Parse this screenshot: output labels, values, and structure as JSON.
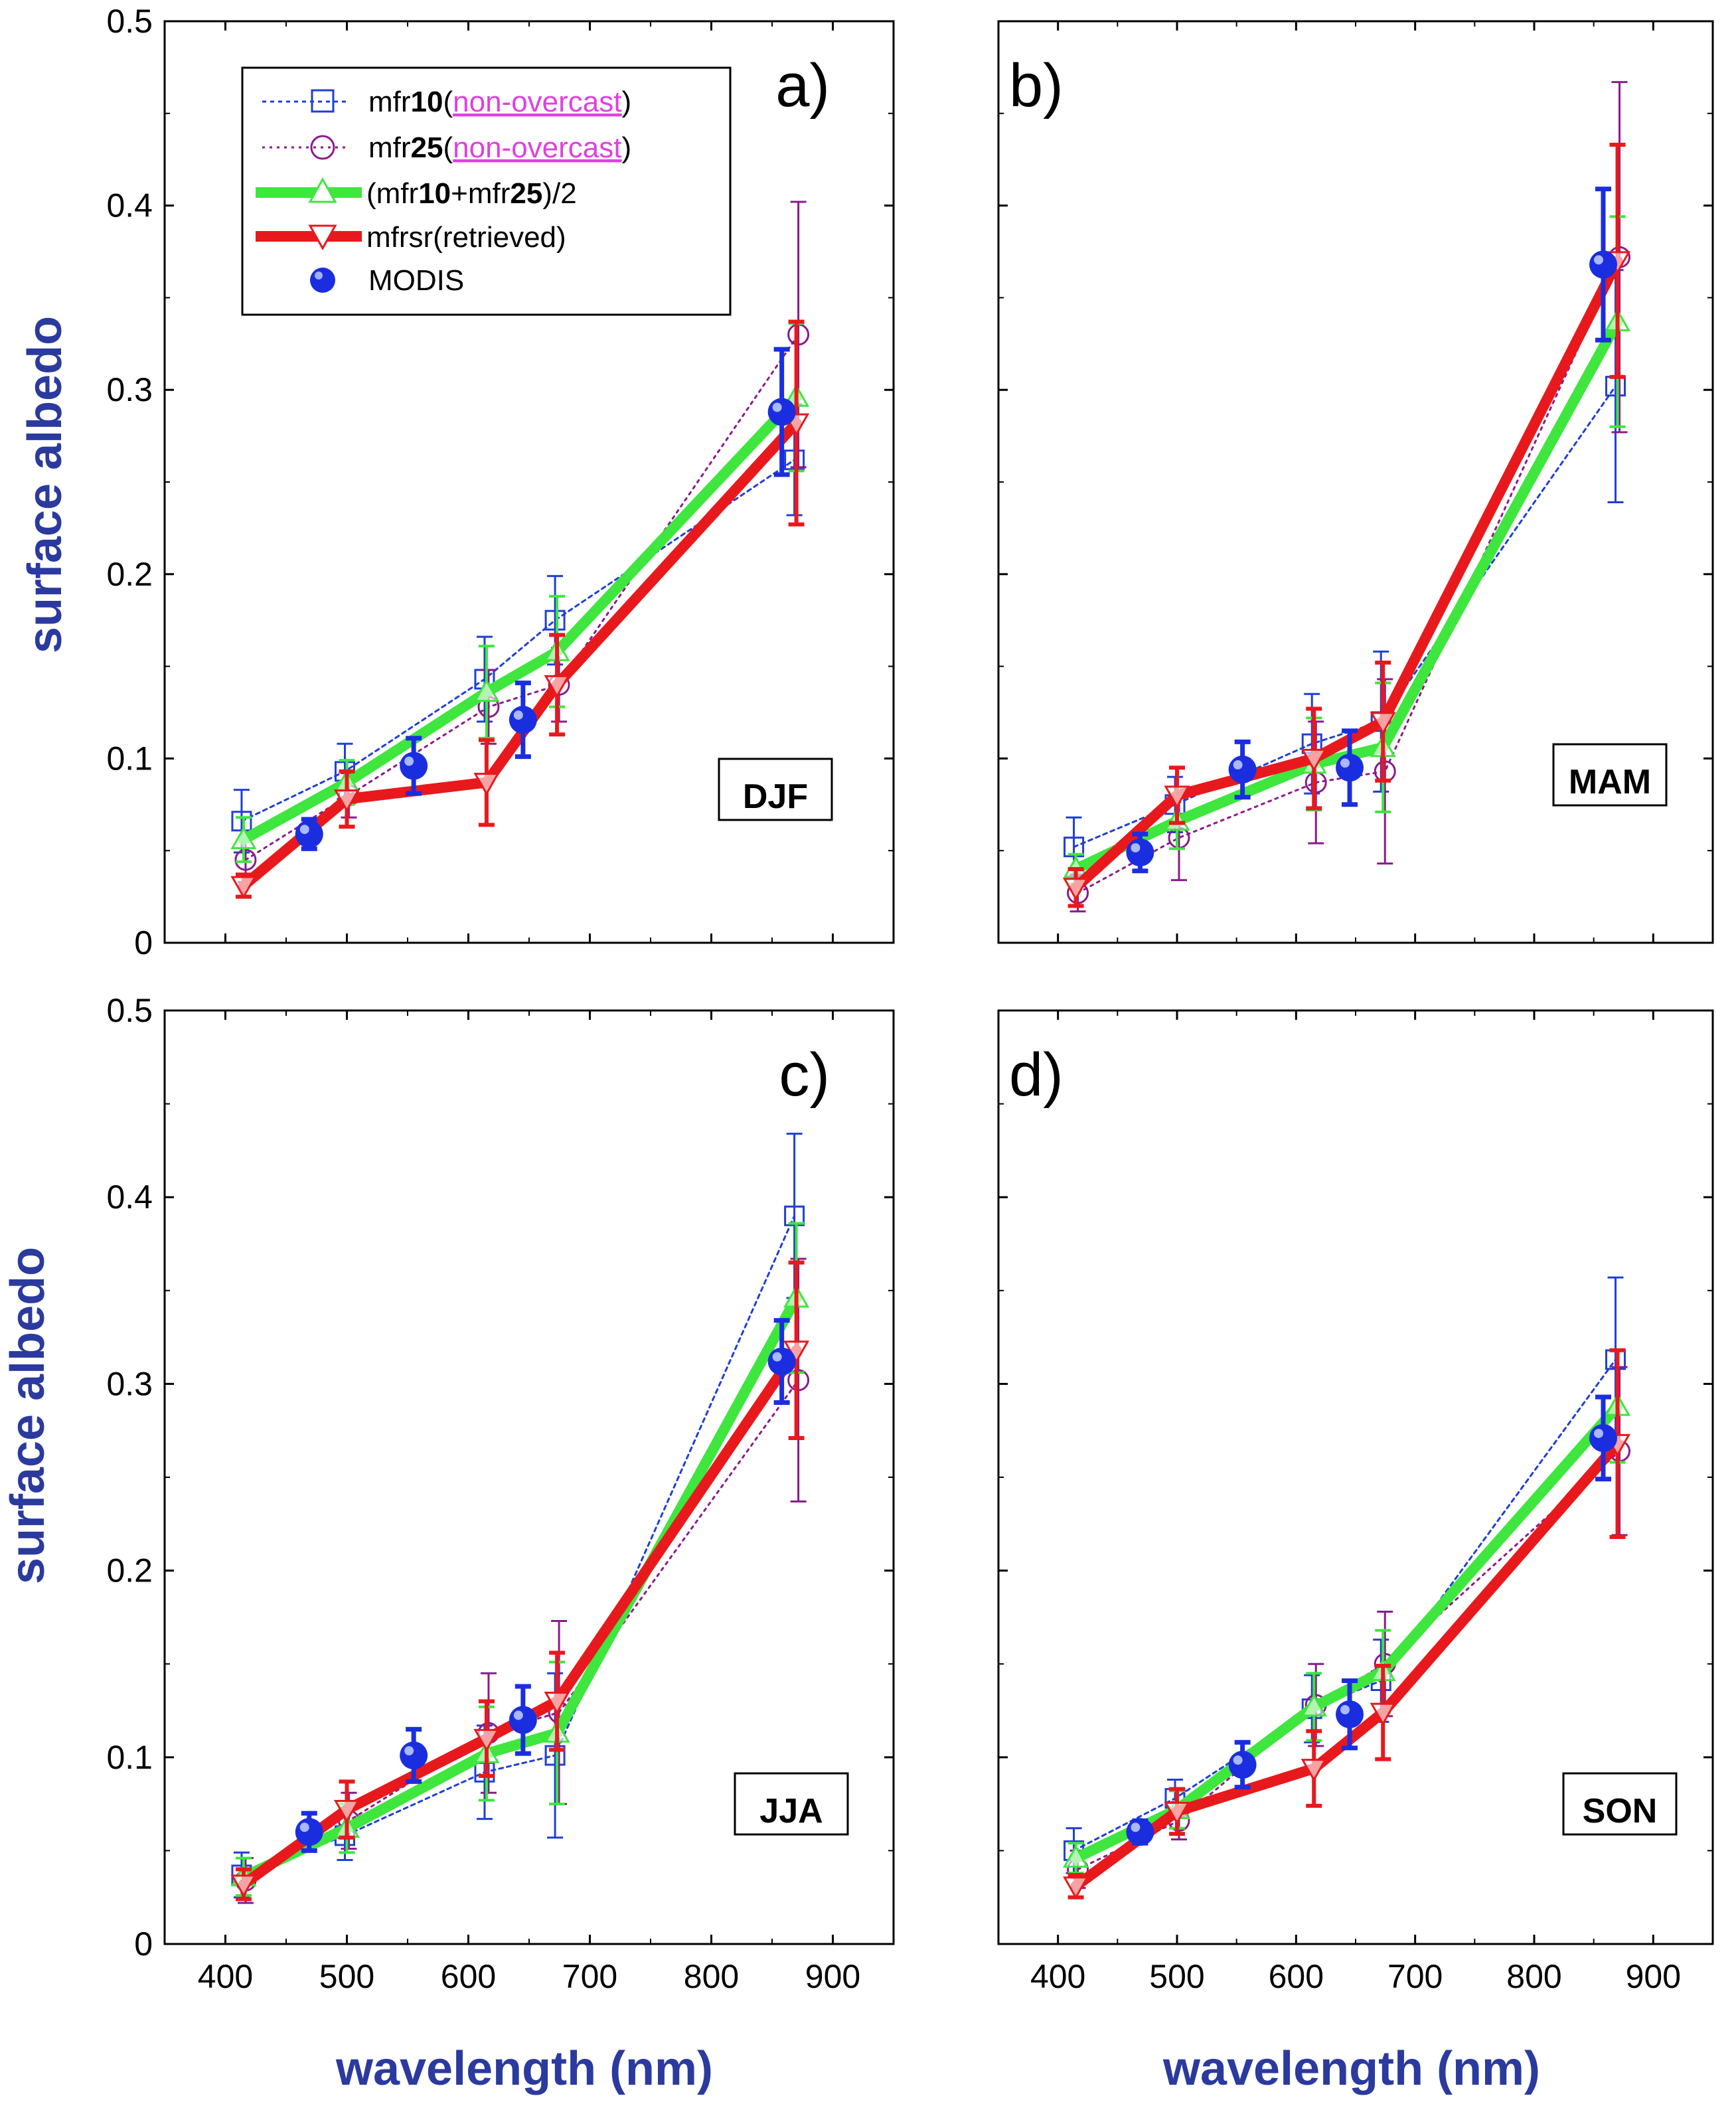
{
  "figure": {
    "ylabel": "surface albedo",
    "xlabel": "wavelength (nm)"
  },
  "legend": {
    "items": [
      {
        "key": "mfr10",
        "parts": [
          "mfr",
          "10",
          "(",
          "non-overcast",
          ")"
        ]
      },
      {
        "key": "mfr25",
        "parts": [
          "mfr",
          "25",
          "(",
          "non-overcast",
          ")"
        ]
      },
      {
        "key": "avg",
        "parts": [
          "(mfr",
          "10",
          "+mfr",
          "25",
          ")/2"
        ]
      },
      {
        "key": "mfrsr",
        "parts": [
          "mfrsr(retrieved)"
        ]
      },
      {
        "key": "modis",
        "parts": [
          "MODIS"
        ]
      }
    ]
  },
  "colors": {
    "mfr10": "#1f3fd6",
    "mfr25": "#8b1a8b",
    "avg": "#3ee63e",
    "mfrsr": "#e8191c",
    "modis": "#1a2ee0",
    "axis_label": "#2b3a9e"
  },
  "chart_data": [
    {
      "type": "line",
      "panel_label": "a)",
      "season": "DJF",
      "xlim": [
        350,
        950
      ],
      "ylim": [
        0,
        0.5
      ],
      "xticks": [
        "400",
        "500",
        "600",
        "700",
        "800",
        "900"
      ],
      "yticks": [
        "0",
        "0.1",
        "0.2",
        "0.3",
        "0.4",
        "0.5"
      ],
      "series": [
        {
          "name": "mfr10(non-overcast)",
          "key": "mfr10",
          "x": [
            415,
            500,
            615,
            673,
            870
          ],
          "y": [
            0.066,
            0.093,
            0.143,
            0.175,
            0.262
          ],
          "err": [
            0.017,
            0.015,
            0.023,
            0.024,
            0.03
          ]
        },
        {
          "name": "mfr25(non-overcast)",
          "key": "mfr25",
          "x": [
            415,
            500,
            615,
            673,
            870
          ],
          "y": [
            0.045,
            0.08,
            0.128,
            0.14,
            0.33
          ],
          "err": [
            0.012,
            0.012,
            0.02,
            0.02,
            0.072
          ]
        },
        {
          "name": "(mfr10+mfr25)/2",
          "key": "avg",
          "x": [
            415,
            500,
            615,
            673,
            870
          ],
          "y": [
            0.056,
            0.087,
            0.136,
            0.158,
            0.296
          ],
          "err": [
            0.012,
            0.012,
            0.025,
            0.03,
            0.04
          ]
        },
        {
          "name": "mfrsr(retrieved)",
          "key": "mfrsr",
          "x": [
            415,
            500,
            615,
            673,
            870
          ],
          "y": [
            0.031,
            0.078,
            0.087,
            0.14,
            0.282
          ],
          "err": [
            0.006,
            0.015,
            0.023,
            0.027,
            0.055
          ]
        },
        {
          "name": "MODIS",
          "key": "modis",
          "x": [
            469,
            555,
            645,
            858
          ],
          "y": [
            0.059,
            0.096,
            0.121,
            0.288
          ],
          "err": [
            0.008,
            0.015,
            0.02,
            0.034
          ]
        }
      ]
    },
    {
      "type": "line",
      "panel_label": "b)",
      "season": "MAM",
      "xlim": [
        350,
        950
      ],
      "ylim": [
        0,
        0.5
      ],
      "xticks": [
        "400",
        "500",
        "600",
        "700",
        "800",
        "900"
      ],
      "yticks": [
        "0",
        "0.1",
        "0.2",
        "0.3",
        "0.4",
        "0.5"
      ],
      "series": [
        {
          "name": "mfr10(non-overcast)",
          "key": "mfr10",
          "x": [
            415,
            500,
            615,
            673,
            870
          ],
          "y": [
            0.052,
            0.075,
            0.108,
            0.12,
            0.302
          ],
          "err": [
            0.016,
            0.015,
            0.027,
            0.038,
            0.063
          ]
        },
        {
          "name": "mfr25(non-overcast)",
          "key": "mfr25",
          "x": [
            415,
            500,
            615,
            673,
            870
          ],
          "y": [
            0.027,
            0.057,
            0.087,
            0.093,
            0.372
          ],
          "err": [
            0.01,
            0.023,
            0.033,
            0.05,
            0.095
          ]
        },
        {
          "name": "(mfr10+mfr25)/2",
          "key": "avg",
          "x": [
            415,
            500,
            615,
            673,
            870
          ],
          "y": [
            0.04,
            0.066,
            0.097,
            0.106,
            0.337
          ],
          "err": [
            0.008,
            0.015,
            0.025,
            0.035,
            0.057
          ]
        },
        {
          "name": "mfrsr(retrieved)",
          "key": "mfrsr",
          "x": [
            415,
            500,
            615,
            673,
            870
          ],
          "y": [
            0.03,
            0.08,
            0.1,
            0.12,
            0.37
          ],
          "err": [
            0.01,
            0.015,
            0.027,
            0.032,
            0.063
          ]
        },
        {
          "name": "MODIS",
          "key": "modis",
          "x": [
            469,
            555,
            645,
            858
          ],
          "y": [
            0.049,
            0.094,
            0.095,
            0.368
          ],
          "err": [
            0.01,
            0.015,
            0.02,
            0.041
          ]
        }
      ]
    },
    {
      "type": "line",
      "panel_label": "c)",
      "season": "JJA",
      "xlim": [
        350,
        950
      ],
      "ylim": [
        0,
        0.5
      ],
      "xticks": [
        "400",
        "500",
        "600",
        "700",
        "800",
        "900"
      ],
      "yticks": [
        "0",
        "0.1",
        "0.2",
        "0.3",
        "0.4",
        "0.5"
      ],
      "series": [
        {
          "name": "mfr10(non-overcast)",
          "key": "mfr10",
          "x": [
            415,
            500,
            615,
            673,
            870
          ],
          "y": [
            0.037,
            0.058,
            0.092,
            0.101,
            0.39
          ],
          "err": [
            0.012,
            0.013,
            0.025,
            0.044,
            0.044
          ]
        },
        {
          "name": "mfr25(non-overcast)",
          "key": "mfr25",
          "x": [
            415,
            500,
            615,
            673,
            870
          ],
          "y": [
            0.034,
            0.066,
            0.113,
            0.124,
            0.302
          ],
          "err": [
            0.012,
            0.015,
            0.032,
            0.049,
            0.065
          ]
        },
        {
          "name": "(mfr10+mfr25)/2",
          "key": "avg",
          "x": [
            415,
            500,
            615,
            673,
            870
          ],
          "y": [
            0.036,
            0.062,
            0.102,
            0.113,
            0.346
          ],
          "err": [
            0.01,
            0.013,
            0.025,
            0.038,
            0.04
          ]
        },
        {
          "name": "mfrsr(retrieved)",
          "key": "mfrsr",
          "x": [
            415,
            500,
            615,
            673,
            870
          ],
          "y": [
            0.032,
            0.072,
            0.11,
            0.13,
            0.318
          ],
          "err": [
            0.008,
            0.015,
            0.02,
            0.026,
            0.047
          ]
        },
        {
          "name": "MODIS",
          "key": "modis",
          "x": [
            469,
            555,
            645,
            858
          ],
          "y": [
            0.06,
            0.101,
            0.12,
            0.312
          ],
          "err": [
            0.01,
            0.014,
            0.018,
            0.022
          ]
        }
      ]
    },
    {
      "type": "line",
      "panel_label": "d)",
      "season": "SON",
      "xlim": [
        350,
        950
      ],
      "ylim": [
        0,
        0.5
      ],
      "xticks": [
        "400",
        "500",
        "600",
        "700",
        "800",
        "900"
      ],
      "yticks": [
        "0",
        "0.1",
        "0.2",
        "0.3",
        "0.4",
        "0.5"
      ],
      "series": [
        {
          "name": "mfr10(non-overcast)",
          "key": "mfr10",
          "x": [
            415,
            500,
            615,
            673,
            870
          ],
          "y": [
            0.05,
            0.078,
            0.126,
            0.141,
            0.313
          ],
          "err": [
            0.012,
            0.01,
            0.018,
            0.022,
            0.044
          ]
        },
        {
          "name": "mfr25(non-overcast)",
          "key": "mfr25",
          "x": [
            415,
            500,
            615,
            673,
            870
          ],
          "y": [
            0.04,
            0.066,
            0.128,
            0.15,
            0.264
          ],
          "err": [
            0.01,
            0.01,
            0.022,
            0.028,
            0.045
          ]
        },
        {
          "name": "(mfr10+mfr25)/2",
          "key": "avg",
          "x": [
            415,
            500,
            615,
            673,
            870
          ],
          "y": [
            0.046,
            0.072,
            0.127,
            0.146,
            0.288
          ],
          "err": [
            0.008,
            0.01,
            0.018,
            0.022,
            0.03
          ]
        },
        {
          "name": "mfrsr(retrieved)",
          "key": "mfrsr",
          "x": [
            415,
            500,
            615,
            673,
            870
          ],
          "y": [
            0.031,
            0.071,
            0.094,
            0.124,
            0.268
          ],
          "err": [
            0.006,
            0.012,
            0.02,
            0.025,
            0.05
          ]
        },
        {
          "name": "MODIS",
          "key": "modis",
          "x": [
            469,
            555,
            645,
            858
          ],
          "y": [
            0.06,
            0.096,
            0.123,
            0.271
          ],
          "err": [
            0.006,
            0.012,
            0.018,
            0.022
          ]
        }
      ]
    }
  ]
}
